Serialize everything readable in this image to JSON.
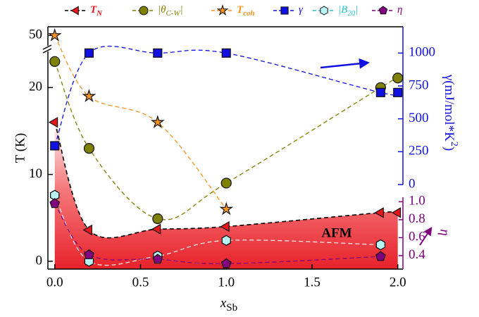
{
  "chart_data": {
    "type": "scatter",
    "xlabel": {
      "text": "x",
      "subscript": "Sb"
    },
    "ylabel": "T (K)",
    "y2label": {
      "text": "γ(mJ/mol*K",
      "superscript": "2",
      "end": ")"
    },
    "y3label": "η",
    "annotation": "AFM",
    "xlim": [
      -0.04,
      2.03
    ],
    "xticks": [
      {
        "value": 0,
        "label": "0.0"
      },
      0.5,
      {
        "value": 1,
        "label": "1.0"
      },
      1.5,
      {
        "value": 2,
        "label": "2.0"
      }
    ],
    "ylim": [
      -0.9,
      51
    ],
    "yticks": [
      0,
      10,
      20,
      50
    ],
    "axis_break": [
      24,
      49
    ],
    "y2lim": [
      0,
      1200
    ],
    "y2ticks": [
      0,
      250,
      500,
      750,
      1000
    ],
    "y3lim": [
      0.25,
      1.05
    ],
    "y3ticks": [
      0.4,
      0.6,
      0.8,
      {
        "value": 1,
        "label": "1.0"
      }
    ],
    "series": [
      {
        "name": "T",
        "subscript": "N",
        "marker": "triangle-left",
        "color": "#e8161b",
        "fill": "#e8161b",
        "axis": "y",
        "curve_color": "#000000",
        "area": true,
        "x": [
          0,
          0.2,
          0.6,
          1.0,
          1.9,
          2.0
        ],
        "values": [
          16.0,
          3.6,
          3.7,
          4.0,
          5.6,
          5.6
        ]
      },
      {
        "name": "|θ",
        "subscript": "C-W",
        "suffix": "|",
        "marker": "circle",
        "color": "#808000",
        "fill": "#808000",
        "axis": "y",
        "curve_color": "#808000",
        "x": [
          0,
          0.2,
          0.6,
          1.0,
          1.9,
          2.0
        ],
        "values": [
          23.0,
          13.0,
          4.9,
          9.0,
          20.0,
          21.1
        ]
      },
      {
        "name": "T",
        "subscript": "coh",
        "marker": "star",
        "color": "#f7931e",
        "fill": "#f7931e",
        "axis": "y",
        "curve_color": "#f7931e",
        "x": [
          0,
          0.2,
          0.6,
          1.0
        ],
        "values": [
          50,
          19.0,
          16.0,
          6.0
        ]
      },
      {
        "name": "γ",
        "marker": "square",
        "color": "#1010e0",
        "fill": "#1010e0",
        "axis": "y2",
        "curve_color": "#1010e0",
        "x": [
          0,
          0.2,
          0.6,
          1.0,
          1.9,
          2.0
        ],
        "values": [
          295,
          1000,
          1000,
          1000,
          700,
          700
        ]
      },
      {
        "name": "|B",
        "subscript": "20",
        "suffix": "|",
        "marker": "hexagon",
        "color": "#20c8c8",
        "fill": "#b8f4f4",
        "axis": "y",
        "curve_color": "#e8e8e8",
        "x": [
          0,
          0.2,
          0.6,
          1.0,
          1.9
        ],
        "values": [
          7.6,
          0,
          0.6,
          2.4,
          1.9
        ]
      },
      {
        "name": "η",
        "marker": "pentagon",
        "color": "#800080",
        "fill": "#800080",
        "axis": "y3",
        "curve_color": "#800080",
        "x": [
          0,
          0.2,
          0.6,
          1.0,
          1.9
        ],
        "values": [
          0.98,
          0.41,
          0.36,
          0.31,
          0.39
        ]
      }
    ]
  }
}
